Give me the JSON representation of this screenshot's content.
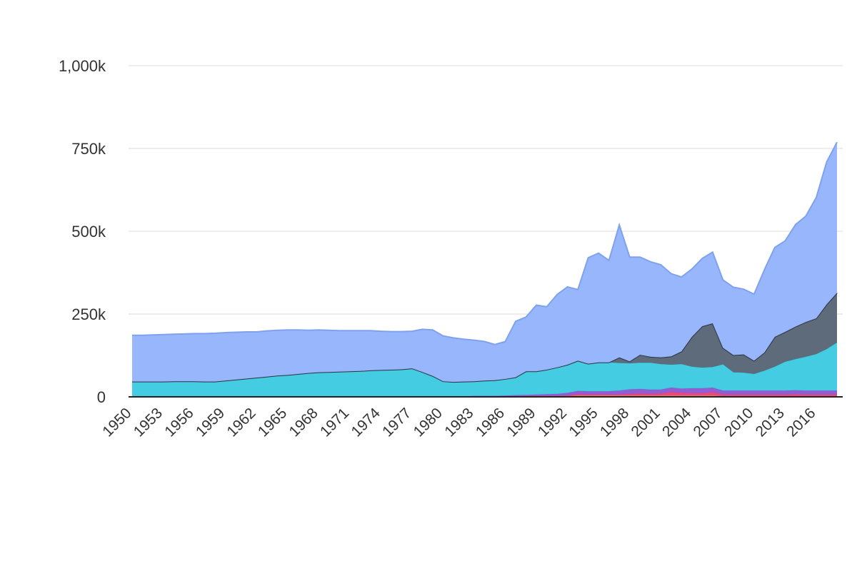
{
  "chart_data": {
    "type": "area",
    "stacked": true,
    "title": "",
    "xlabel": "",
    "ylabel": "",
    "ylim": [
      0,
      1000000
    ],
    "y_ticks": [
      0,
      250000,
      500000,
      750000,
      1000000
    ],
    "y_tick_labels": [
      "0",
      "250k",
      "500k",
      "750k",
      "1,000k"
    ],
    "x_tick_labels": [
      "1950",
      "1953",
      "1956",
      "1959",
      "1962",
      "1965",
      "1968",
      "1971",
      "1974",
      "1977",
      "1980",
      "1983",
      "1986",
      "1989",
      "1992",
      "1995",
      "1998",
      "2001",
      "2004",
      "2007",
      "2010",
      "2013",
      "2016"
    ],
    "grid": true,
    "legend": "none",
    "x": [
      1950,
      1951,
      1952,
      1953,
      1954,
      1955,
      1956,
      1957,
      1958,
      1959,
      1960,
      1961,
      1962,
      1963,
      1964,
      1965,
      1966,
      1967,
      1968,
      1969,
      1970,
      1971,
      1972,
      1973,
      1974,
      1975,
      1976,
      1977,
      1978,
      1979,
      1980,
      1981,
      1982,
      1983,
      1984,
      1985,
      1986,
      1987,
      1988,
      1989,
      1990,
      1991,
      1992,
      1993,
      1994,
      1995,
      1996,
      1997,
      1998,
      1999,
      2000,
      2001,
      2002,
      2003,
      2004,
      2005,
      2006,
      2007,
      2008,
      2009,
      2010,
      2011,
      2012,
      2013,
      2014,
      2015,
      2016,
      2017,
      2018
    ],
    "series": [
      {
        "color": "#f2c12e",
        "values": [
          1000,
          1000,
          1000,
          1000,
          1000,
          1000,
          1000,
          1000,
          1000,
          1000,
          1000,
          1000,
          1000,
          1000,
          1000,
          1000,
          1000,
          1000,
          1000,
          1000,
          1000,
          1000,
          1000,
          1000,
          1000,
          1000,
          1000,
          2000,
          2000,
          2000,
          2000,
          2000,
          2000,
          2000,
          2000,
          2000,
          2000,
          2000,
          2000,
          2000,
          2000,
          2000,
          2000,
          3000,
          3000,
          3000,
          3000,
          3000,
          3000,
          3000,
          3000,
          3000,
          3000,
          3000,
          3000,
          3000,
          3000,
          2000,
          2000,
          2000,
          2000,
          2000,
          2000,
          2000,
          2000,
          2000,
          2000,
          2000,
          2000
        ]
      },
      {
        "color": "#e8457c",
        "values": [
          0,
          0,
          0,
          0,
          0,
          0,
          0,
          0,
          0,
          0,
          0,
          0,
          0,
          0,
          0,
          0,
          0,
          0,
          0,
          0,
          0,
          0,
          0,
          0,
          0,
          0,
          0,
          0,
          0,
          0,
          0,
          0,
          0,
          0,
          0,
          0,
          0,
          0,
          1000,
          1000,
          1000,
          1000,
          2000,
          5000,
          4000,
          4000,
          4000,
          4000,
          6000,
          7000,
          6000,
          7000,
          12000,
          9000,
          8000,
          8000,
          12000,
          5000,
          5000,
          5000,
          5000,
          5000,
          5000,
          5000,
          6000,
          5000,
          5000,
          5000,
          5000
        ]
      },
      {
        "color": "#8e5bd1",
        "values": [
          0,
          0,
          0,
          0,
          0,
          0,
          0,
          0,
          0,
          0,
          0,
          0,
          0,
          0,
          0,
          0,
          0,
          0,
          0,
          0,
          0,
          0,
          0,
          0,
          0,
          0,
          0,
          0,
          0,
          0,
          0,
          0,
          0,
          1000,
          1000,
          1000,
          2000,
          3000,
          3000,
          4000,
          5000,
          6000,
          8000,
          10000,
          10000,
          10000,
          10000,
          12000,
          14000,
          14000,
          13000,
          12000,
          13000,
          13000,
          15000,
          15000,
          13000,
          12000,
          12000,
          12000,
          12000,
          12000,
          12000,
          12000,
          12000,
          12000,
          12000,
          12000,
          12000
        ]
      },
      {
        "color": "#3fcbe1",
        "values": [
          45000,
          45000,
          45000,
          45000,
          46000,
          46000,
          46000,
          45000,
          45000,
          48000,
          51000,
          54000,
          57000,
          60000,
          63000,
          65000,
          68000,
          71000,
          73000,
          74000,
          75000,
          76000,
          77000,
          79000,
          80000,
          81000,
          82000,
          84000,
          73000,
          61000,
          45000,
          43000,
          44000,
          44000,
          46000,
          47000,
          50000,
          54000,
          71000,
          70000,
          74000,
          80000,
          85000,
          91000,
          83000,
          87000,
          87000,
          83000,
          78000,
          79000,
          81000,
          77000,
          69000,
          74000,
          65000,
          62000,
          62000,
          79000,
          55000,
          54000,
          50000,
          60000,
          72000,
          87000,
          94000,
          102000,
          110000,
          125000,
          145000
        ]
      },
      {
        "color": "#5b6878",
        "values": [
          0,
          0,
          0,
          0,
          0,
          0,
          0,
          0,
          0,
          0,
          0,
          0,
          0,
          0,
          0,
          0,
          0,
          0,
          0,
          0,
          0,
          0,
          0,
          0,
          0,
          0,
          0,
          0,
          0,
          0,
          0,
          0,
          0,
          0,
          0,
          0,
          0,
          0,
          0,
          0,
          0,
          0,
          0,
          0,
          0,
          0,
          0,
          17000,
          6000,
          24000,
          18000,
          20000,
          25000,
          38000,
          90000,
          125000,
          132000,
          50000,
          52000,
          55000,
          40000,
          55000,
          90000,
          90000,
          98000,
          105000,
          108000,
          135000,
          150000
        ]
      },
      {
        "color": "#96b5fb",
        "values": [
          140000,
          140000,
          141000,
          142000,
          142000,
          143000,
          144000,
          145000,
          146000,
          145000,
          143000,
          141000,
          138000,
          138000,
          137000,
          136000,
          133000,
          129000,
          128000,
          126000,
          124000,
          123000,
          122000,
          120000,
          117000,
          115000,
          114000,
          112000,
          129000,
          139000,
          137000,
          133000,
          128000,
          124000,
          118000,
          108000,
          113000,
          169000,
          164000,
          200000,
          190000,
          220000,
          235000,
          215000,
          320000,
          330000,
          308000,
          400000,
          315000,
          295000,
          287000,
          280000,
          250000,
          225000,
          205000,
          205000,
          215000,
          205000,
          205000,
          197000,
          201000,
          250000,
          270000,
          275000,
          308000,
          320000,
          365000,
          430000,
          455000
        ]
      }
    ]
  }
}
